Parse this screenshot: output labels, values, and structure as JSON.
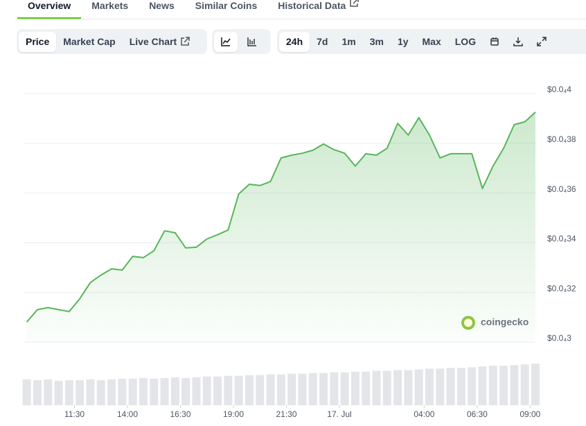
{
  "tabs": [
    "Overview",
    "Markets",
    "News",
    "Similar Coins",
    "Historical Data"
  ],
  "toolbar": {
    "view": [
      "Price",
      "Market Cap",
      "Live Chart"
    ],
    "range": [
      "24h",
      "7d",
      "1m",
      "3m",
      "1y",
      "Max",
      "LOG"
    ]
  },
  "chart_data": {
    "type": "line",
    "color": "#57b55a",
    "grid": true,
    "watermark": "coingecko",
    "x": [
      9.25,
      9.75,
      10.25,
      10.75,
      11.25,
      11.75,
      12.25,
      12.75,
      13.25,
      13.75,
      14.25,
      14.75,
      15.25,
      15.75,
      16.25,
      16.75,
      17.25,
      17.75,
      18.25,
      18.75,
      19.25,
      19.75,
      20.25,
      20.75,
      21.25,
      21.75,
      22.25,
      22.75,
      23.25,
      23.75,
      24.25,
      24.75,
      25.25,
      25.75,
      26.25,
      26.75,
      27.25,
      27.75,
      28.25,
      28.75,
      29.25,
      29.75,
      30.25,
      30.75,
      31.25,
      31.75,
      32.25,
      32.75,
      33.25
    ],
    "values": [
      3.081e-05,
      3.131e-05,
      3.139e-05,
      3.131e-05,
      3.123e-05,
      3.175e-05,
      3.24e-05,
      3.27e-05,
      3.295e-05,
      3.29e-05,
      3.345e-05,
      3.34e-05,
      3.368e-05,
      3.448e-05,
      3.44e-05,
      3.379e-05,
      3.382e-05,
      3.415e-05,
      3.432e-05,
      3.451e-05,
      3.596e-05,
      3.635e-05,
      3.63e-05,
      3.646e-05,
      3.741e-05,
      3.752e-05,
      3.76e-05,
      3.772e-05,
      3.797e-05,
      3.774e-05,
      3.76e-05,
      3.708e-05,
      3.758e-05,
      3.752e-05,
      3.78e-05,
      3.88e-05,
      3.833e-05,
      3.903e-05,
      3.833e-05,
      3.741e-05,
      3.758e-05,
      3.758e-05,
      3.758e-05,
      3.618e-05,
      3.708e-05,
      3.78e-05,
      3.875e-05,
      3.886e-05,
      3.925e-05
    ],
    "volume": {
      "color": "#e3e5e8",
      "values": [
        36,
        35,
        36,
        34,
        35,
        35,
        36,
        35,
        36,
        37,
        37,
        38,
        37,
        38,
        39,
        38,
        39,
        40,
        40,
        41,
        41,
        42,
        42,
        43,
        43,
        44,
        44,
        45,
        45,
        46,
        46,
        47,
        47,
        48,
        48,
        49,
        49,
        50,
        51,
        51,
        52,
        52,
        53,
        54,
        55,
        55,
        56,
        57,
        58
      ]
    },
    "xlim": [
      9.13,
      33.25
    ],
    "xticks": [
      {
        "value": 11.5,
        "label": "11:30"
      },
      {
        "value": 14,
        "label": "14:00"
      },
      {
        "value": 16.5,
        "label": "16:30"
      },
      {
        "value": 19,
        "label": "19:00"
      },
      {
        "value": 21.5,
        "label": "21:30"
      },
      {
        "value": 24,
        "label": "17. Jul"
      },
      {
        "value": 28,
        "label": "04:00"
      },
      {
        "value": 30.5,
        "label": "06:30"
      },
      {
        "value": 33,
        "label": "09:00"
      }
    ],
    "ylim": [
      3e-05,
      4e-05
    ],
    "yticks": [
      {
        "value": 3e-05,
        "label": "$0.0₄3"
      },
      {
        "value": 3.2e-05,
        "label": "$0.0₄32"
      },
      {
        "value": 3.4e-05,
        "label": "$0.0₄34"
      },
      {
        "value": 3.6e-05,
        "label": "$0.0₄36"
      },
      {
        "value": 3.8e-05,
        "label": "$0.0₄38"
      },
      {
        "value": 4e-05,
        "label": "$0.0₄4"
      }
    ]
  }
}
